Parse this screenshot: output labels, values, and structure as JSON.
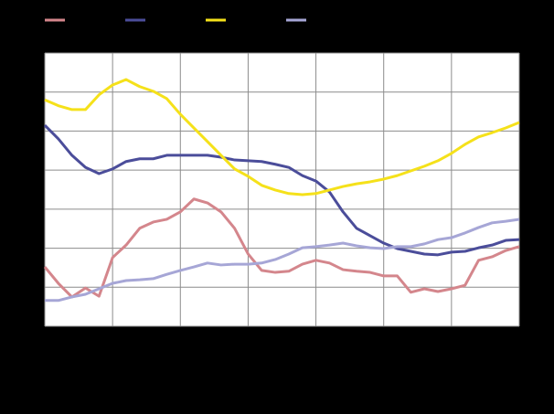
{
  "chart_data": {
    "type": "line",
    "x": [
      0,
      0.2,
      0.4,
      0.6,
      0.8,
      1,
      1.2,
      1.4,
      1.6,
      1.8,
      2,
      2.2,
      2.4,
      2.6,
      2.8,
      3,
      3.2,
      3.4,
      3.6,
      3.8,
      4,
      4.2,
      4.4,
      4.6,
      4.8,
      5,
      5.2,
      5.4,
      5.6,
      5.8,
      6,
      6.2,
      6.4,
      6.6,
      6.8,
      7
    ],
    "series": [
      {
        "color": "#d4868c",
        "values": [
          1.52,
          1.1,
          0.75,
          0.98,
          0.77,
          1.76,
          2.08,
          2.51,
          2.67,
          2.74,
          2.93,
          3.26,
          3.16,
          2.93,
          2.51,
          1.85,
          1.43,
          1.38,
          1.41,
          1.59,
          1.69,
          1.62,
          1.45,
          1.41,
          1.38,
          1.29,
          1.29,
          0.87,
          0.96,
          0.89,
          0.96,
          1.05,
          1.69,
          1.78,
          1.94,
          2.04
        ]
      },
      {
        "color": "#4b4d9a",
        "values": [
          5.15,
          4.8,
          4.38,
          4.07,
          3.91,
          4.03,
          4.22,
          4.29,
          4.29,
          4.38,
          4.38,
          4.38,
          4.38,
          4.33,
          4.26,
          4.24,
          4.22,
          4.15,
          4.07,
          3.86,
          3.72,
          3.44,
          2.93,
          2.51,
          2.32,
          2.13,
          1.99,
          1.92,
          1.85,
          1.83,
          1.9,
          1.92,
          2.01,
          2.08,
          2.2,
          2.22
        ]
      },
      {
        "color": "#f5e11a",
        "values": [
          5.8,
          5.65,
          5.55,
          5.55,
          5.93,
          6.18,
          6.32,
          6.14,
          6.02,
          5.83,
          5.43,
          5.08,
          4.73,
          4.38,
          4.03,
          3.84,
          3.61,
          3.49,
          3.4,
          3.37,
          3.4,
          3.49,
          3.58,
          3.65,
          3.7,
          3.77,
          3.86,
          3.98,
          4.1,
          4.24,
          4.43,
          4.66,
          4.85,
          4.96,
          5.08,
          5.22
        ]
      },
      {
        "color": "#a6a6d6",
        "values": [
          0.66,
          0.66,
          0.75,
          0.82,
          0.96,
          1.1,
          1.17,
          1.19,
          1.22,
          1.33,
          1.43,
          1.52,
          1.62,
          1.57,
          1.59,
          1.59,
          1.62,
          1.71,
          1.85,
          2.01,
          2.04,
          2.08,
          2.13,
          2.06,
          2.01,
          1.99,
          2.04,
          2.04,
          2.11,
          2.22,
          2.27,
          2.39,
          2.53,
          2.65,
          2.69,
          2.74
        ]
      }
    ],
    "xlim": [
      0,
      7
    ],
    "xticks": [
      0,
      1,
      2,
      3,
      4,
      5,
      6,
      7
    ],
    "ylim": [
      0,
      7
    ],
    "yticks": [
      0,
      1,
      2,
      3,
      4,
      5,
      6,
      7
    ],
    "grid": true
  }
}
